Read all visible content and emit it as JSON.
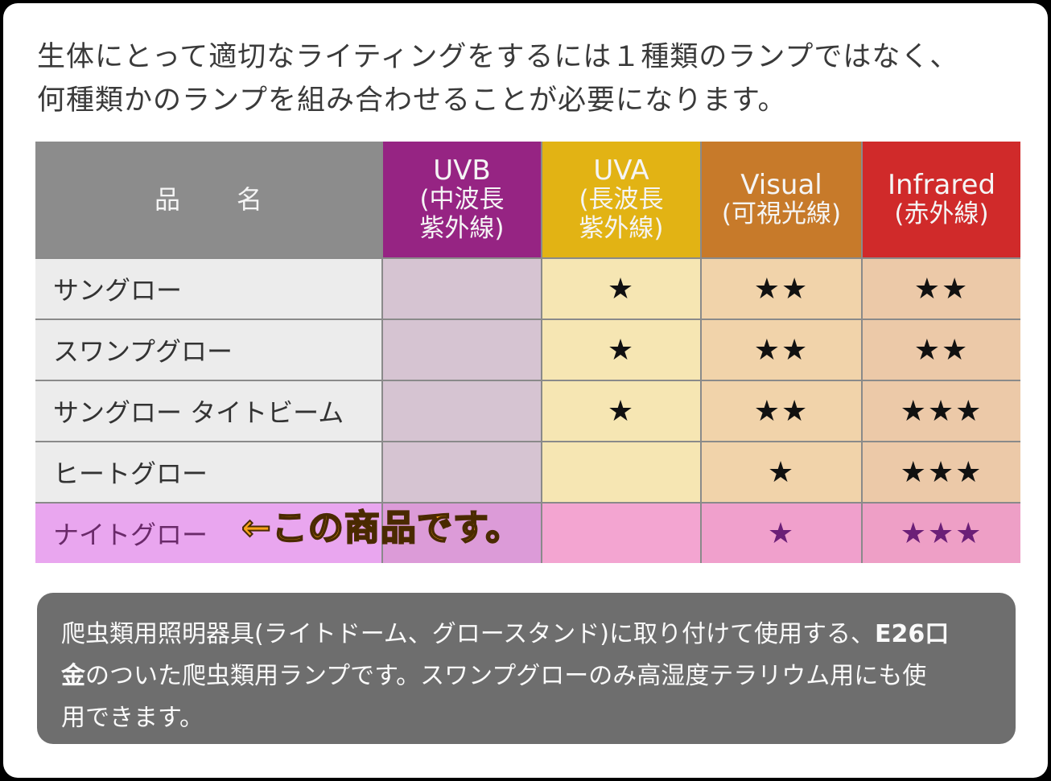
{
  "intro": {
    "line1": "生体にとって適切なライティングをするには１種類のランプではなく、",
    "line2": "何種類かのランプを組み合わせることが必要になります。"
  },
  "table": {
    "headers": {
      "name": "品名",
      "uvb": {
        "en": "UVB",
        "jp1": "(中波長",
        "jp2": "紫外線)"
      },
      "uva": {
        "en": "UVA",
        "jp1": "(長波長",
        "jp2": "紫外線)"
      },
      "visual": {
        "en": "Visual",
        "jp1": "(可視光線)"
      },
      "infrared": {
        "en": "Infrared",
        "jp1": "(赤外線)"
      }
    },
    "rows": [
      {
        "name": "サングロー",
        "uvb": "",
        "uva": "★",
        "visual": "★★",
        "infrared": "★★"
      },
      {
        "name": "スワンプグロー",
        "uvb": "",
        "uva": "★",
        "visual": "★★",
        "infrared": "★★"
      },
      {
        "name": "サングロー タイトビーム",
        "uvb": "",
        "uva": "★",
        "visual": "★★",
        "infrared": "★★★"
      },
      {
        "name": "ヒートグロー",
        "uvb": "",
        "uva": "",
        "visual": "★",
        "infrared": "★★★"
      },
      {
        "name": "ナイトグロー",
        "uvb": "",
        "uva": "",
        "visual": "★",
        "infrared": "★★★"
      }
    ]
  },
  "annotation": "←この商品です。",
  "footer": {
    "line1_pre": "爬虫類用照明器具(ライトドーム、グロースタンド)に取り付けて使用する、",
    "line1_bold": "E26口",
    "line2_bold": "金",
    "line2_post": "のついた爬虫類用ランプです。スワンプグローのみ高湿度テラリウム用にも使",
    "line3": "用できます。"
  },
  "colors": {
    "uvb": "#962483",
    "uva": "#e2b314",
    "visual": "#c77a2a",
    "infrared": "#d02a2a",
    "highlight": "#e9a6ef",
    "annotation": "#f7a21b"
  }
}
